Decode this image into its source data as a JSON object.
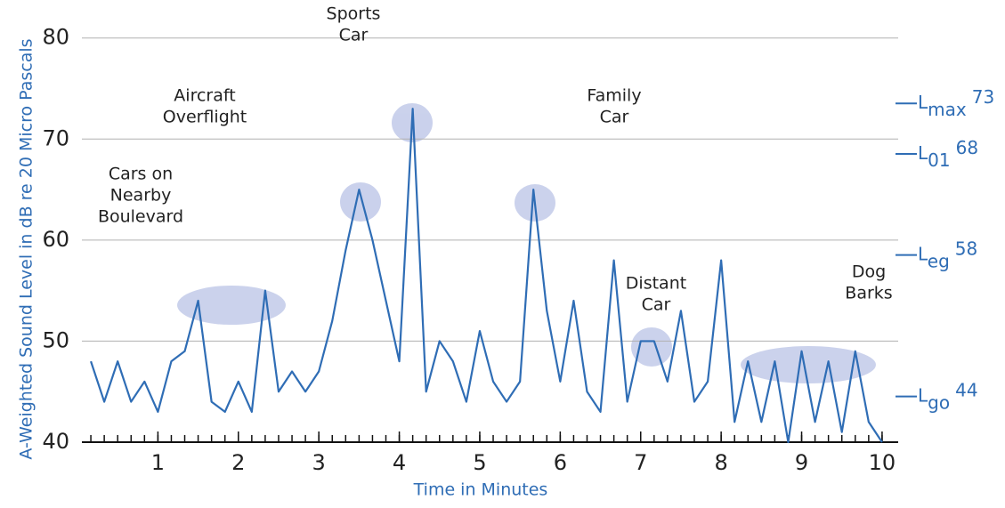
{
  "chart_data": {
    "type": "line",
    "y_label": "A-Weighted Sound Level in dB re 20 Micro Pascals",
    "x_label": "Time in Minutes",
    "x": [
      0.1667,
      0.3333,
      0.5,
      0.6667,
      0.8333,
      1,
      1.1667,
      1.3333,
      1.5,
      1.6667,
      1.8333,
      2,
      2.1667,
      2.3333,
      2.5,
      2.6667,
      2.8333,
      3,
      3.1667,
      3.3333,
      3.5,
      3.6667,
      3.8333,
      4,
      4.1667,
      4.3333,
      4.5,
      4.6667,
      4.8333,
      5,
      5.1667,
      5.3333,
      5.5,
      5.6667,
      5.8333,
      6,
      6.1667,
      6.3333,
      6.5,
      6.6667,
      6.8333,
      7,
      7.1667,
      7.3333,
      7.5,
      7.6667,
      7.8333,
      8,
      8.1667,
      8.3333,
      8.5,
      8.6667,
      8.8333,
      9,
      9.1667,
      9.3333,
      9.5,
      9.6667,
      9.8333,
      10
    ],
    "series": [
      {
        "color": "#2f6db5",
        "values": [
          48,
          44,
          48,
          44,
          46,
          43,
          48,
          49,
          54,
          44,
          43,
          46,
          43,
          55,
          45,
          47,
          45,
          47,
          52,
          59,
          65,
          60,
          54,
          48,
          73,
          45,
          50,
          48,
          44,
          51,
          46,
          44,
          46,
          65,
          53,
          46,
          54,
          45,
          43,
          58,
          44,
          50,
          50,
          46,
          53,
          44,
          46,
          58,
          42,
          48,
          42,
          48,
          40,
          49,
          42,
          48,
          41,
          49,
          42,
          40
        ]
      }
    ],
    "xlim": [
      0,
      10.2
    ],
    "xticks": [
      1,
      2,
      3,
      4,
      5,
      6,
      7,
      8,
      9,
      10
    ],
    "ylim": [
      40,
      82
    ],
    "yticks": [
      40,
      50,
      60,
      70,
      80
    ],
    "grid": true,
    "annotations": [
      {
        "lines": [
          "Cars on",
          "Nearby",
          "Boulevard"
        ]
      },
      {
        "lines": [
          "Aircraft",
          "Overflight"
        ]
      },
      {
        "lines": [
          "Sports",
          "Car"
        ]
      },
      {
        "lines": [
          "Family",
          "Car"
        ]
      },
      {
        "lines": [
          "Distant",
          "Car"
        ]
      },
      {
        "lines": [
          "Dog",
          "Barks"
        ]
      }
    ],
    "levels": [
      {
        "label": "L",
        "sub": "max",
        "value": 73
      },
      {
        "label": "L",
        "sub": "01",
        "value": 68
      },
      {
        "label": "L",
        "sub": "eg",
        "value": 58
      },
      {
        "label": "L",
        "sub": "go",
        "value": 44
      }
    ]
  }
}
